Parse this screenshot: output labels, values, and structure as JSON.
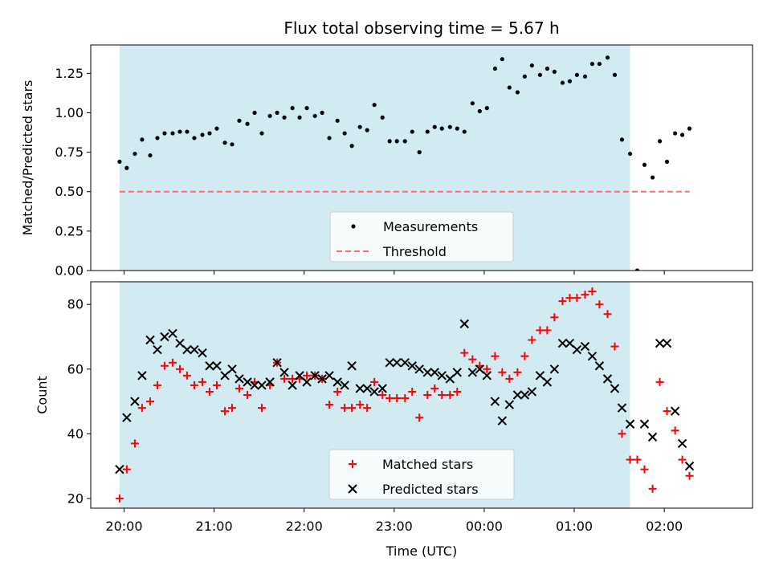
{
  "title": "Flux total observing time = 5.67 h",
  "x_axis": {
    "label": "Time (UTC)",
    "unit": "hours after 20:00 UTC",
    "range": [
      -0.37,
      6.98
    ],
    "ticks": [
      {
        "value": 0,
        "label": "20:00"
      },
      {
        "value": 1,
        "label": "21:00"
      },
      {
        "value": 2,
        "label": "22:00"
      },
      {
        "value": 3,
        "label": "23:00"
      },
      {
        "value": 4,
        "label": "00:00"
      },
      {
        "value": 5,
        "label": "01:00"
      },
      {
        "value": 6,
        "label": "02:00"
      }
    ]
  },
  "shaded_span": {
    "x_start": -0.05,
    "x_end": 5.62,
    "color": "#add8e6"
  },
  "colors": {
    "measurements": "#000000",
    "threshold": "#ff6b6b",
    "matched": "#ff0000",
    "predicted": "#000000"
  },
  "chart_data": [
    {
      "type": "scatter",
      "ylabel": "Matched/Predicted stars",
      "ylim": [
        0,
        1.43
      ],
      "yticks": [
        {
          "value": 0,
          "label": "0.00"
        },
        {
          "value": 0.25,
          "label": "0.25"
        },
        {
          "value": 0.5,
          "label": "0.50"
        },
        {
          "value": 0.75,
          "label": "0.75"
        },
        {
          "value": 1.0,
          "label": "1.00"
        },
        {
          "value": 1.25,
          "label": "1.25"
        }
      ],
      "legend_position": "lower-center",
      "series": [
        {
          "name": "Measurements",
          "marker": "dot",
          "points": [
            [
              -0.05,
              0.69
            ],
            [
              0.03,
              0.65
            ],
            [
              0.12,
              0.74
            ],
            [
              0.2,
              0.83
            ],
            [
              0.29,
              0.73
            ],
            [
              0.37,
              0.84
            ],
            [
              0.45,
              0.87
            ],
            [
              0.54,
              0.87
            ],
            [
              0.62,
              0.88
            ],
            [
              0.7,
              0.88
            ],
            [
              0.78,
              0.84
            ],
            [
              0.87,
              0.86
            ],
            [
              0.95,
              0.87
            ],
            [
              1.03,
              0.9
            ],
            [
              1.12,
              0.81
            ],
            [
              1.2,
              0.8
            ],
            [
              1.28,
              0.95
            ],
            [
              1.37,
              0.93
            ],
            [
              1.45,
              1.0
            ],
            [
              1.53,
              0.87
            ],
            [
              1.62,
              0.98
            ],
            [
              1.7,
              1.0
            ],
            [
              1.78,
              0.97
            ],
            [
              1.87,
              1.03
            ],
            [
              1.95,
              0.97
            ],
            [
              2.03,
              1.03
            ],
            [
              2.12,
              0.98
            ],
            [
              2.2,
              1.0
            ],
            [
              2.28,
              0.84
            ],
            [
              2.37,
              0.95
            ],
            [
              2.45,
              0.87
            ],
            [
              2.53,
              0.79
            ],
            [
              2.62,
              0.91
            ],
            [
              2.7,
              0.89
            ],
            [
              2.78,
              1.05
            ],
            [
              2.87,
              0.97
            ],
            [
              2.95,
              0.82
            ],
            [
              3.03,
              0.82
            ],
            [
              3.12,
              0.82
            ],
            [
              3.2,
              0.88
            ],
            [
              3.28,
              0.75
            ],
            [
              3.37,
              0.88
            ],
            [
              3.45,
              0.91
            ],
            [
              3.53,
              0.9
            ],
            [
              3.62,
              0.91
            ],
            [
              3.7,
              0.9
            ],
            [
              3.78,
              0.88
            ],
            [
              3.87,
              1.06
            ],
            [
              3.95,
              1.01
            ],
            [
              4.03,
              1.03
            ],
            [
              4.12,
              1.28
            ],
            [
              4.2,
              1.34
            ],
            [
              4.28,
              1.16
            ],
            [
              4.37,
              1.13
            ],
            [
              4.45,
              1.23
            ],
            [
              4.53,
              1.3
            ],
            [
              4.62,
              1.24
            ],
            [
              4.7,
              1.28
            ],
            [
              4.78,
              1.26
            ],
            [
              4.87,
              1.19
            ],
            [
              4.95,
              1.2
            ],
            [
              5.03,
              1.24
            ],
            [
              5.12,
              1.23
            ],
            [
              5.2,
              1.31
            ],
            [
              5.28,
              1.31
            ],
            [
              5.37,
              1.35
            ],
            [
              5.45,
              1.24
            ],
            [
              5.53,
              0.83
            ],
            [
              5.62,
              0.74
            ],
            [
              5.7,
              0.0
            ],
            [
              5.78,
              0.67
            ],
            [
              5.87,
              0.59
            ],
            [
              5.95,
              0.82
            ],
            [
              6.03,
              0.69
            ],
            [
              6.12,
              0.87
            ],
            [
              6.2,
              0.86
            ],
            [
              6.28,
              0.9
            ]
          ]
        },
        {
          "name": "Threshold",
          "marker": "dashed-line",
          "points": [
            [
              -0.05,
              0.5
            ],
            [
              6.28,
              0.5
            ]
          ]
        }
      ]
    },
    {
      "type": "scatter",
      "ylabel": "Count",
      "ylim": [
        17,
        87
      ],
      "yticks": [
        {
          "value": 20,
          "label": "20"
        },
        {
          "value": 40,
          "label": "40"
        },
        {
          "value": 60,
          "label": "60"
        },
        {
          "value": 80,
          "label": "80"
        }
      ],
      "legend_position": "lower-center",
      "series": [
        {
          "name": "Matched stars",
          "marker": "plus",
          "points": [
            [
              -0.05,
              20
            ],
            [
              0.03,
              29
            ],
            [
              0.12,
              37
            ],
            [
              0.2,
              48
            ],
            [
              0.29,
              50
            ],
            [
              0.37,
              55
            ],
            [
              0.45,
              61
            ],
            [
              0.54,
              62
            ],
            [
              0.62,
              60
            ],
            [
              0.7,
              58
            ],
            [
              0.78,
              55
            ],
            [
              0.87,
              56
            ],
            [
              0.95,
              53
            ],
            [
              1.03,
              55
            ],
            [
              1.12,
              47
            ],
            [
              1.2,
              48
            ],
            [
              1.28,
              54
            ],
            [
              1.37,
              52
            ],
            [
              1.45,
              56
            ],
            [
              1.53,
              48
            ],
            [
              1.62,
              55
            ],
            [
              1.7,
              62
            ],
            [
              1.78,
              57
            ],
            [
              1.87,
              57
            ],
            [
              1.95,
              57
            ],
            [
              2.03,
              58
            ],
            [
              2.12,
              58
            ],
            [
              2.2,
              57
            ],
            [
              2.28,
              49
            ],
            [
              2.37,
              53
            ],
            [
              2.45,
              48
            ],
            [
              2.53,
              48
            ],
            [
              2.62,
              49
            ],
            [
              2.7,
              48
            ],
            [
              2.78,
              56
            ],
            [
              2.87,
              52
            ],
            [
              2.95,
              51
            ],
            [
              3.03,
              51
            ],
            [
              3.12,
              51
            ],
            [
              3.2,
              53
            ],
            [
              3.28,
              45
            ],
            [
              3.37,
              52
            ],
            [
              3.45,
              54
            ],
            [
              3.53,
              52
            ],
            [
              3.62,
              52
            ],
            [
              3.7,
              53
            ],
            [
              3.78,
              65
            ],
            [
              3.87,
              63
            ],
            [
              3.95,
              61
            ],
            [
              4.03,
              60
            ],
            [
              4.12,
              64
            ],
            [
              4.2,
              59
            ],
            [
              4.28,
              57
            ],
            [
              4.37,
              59
            ],
            [
              4.45,
              64
            ],
            [
              4.53,
              69
            ],
            [
              4.62,
              72
            ],
            [
              4.7,
              72
            ],
            [
              4.78,
              76
            ],
            [
              4.87,
              81
            ],
            [
              4.95,
              82
            ],
            [
              5.03,
              82
            ],
            [
              5.12,
              83
            ],
            [
              5.2,
              84
            ],
            [
              5.28,
              80
            ],
            [
              5.37,
              77
            ],
            [
              5.45,
              67
            ],
            [
              5.53,
              40
            ],
            [
              5.62,
              32
            ],
            [
              5.7,
              32
            ],
            [
              5.78,
              29
            ],
            [
              5.87,
              23
            ],
            [
              5.95,
              56
            ],
            [
              6.03,
              47
            ],
            [
              6.12,
              41
            ],
            [
              6.2,
              32
            ],
            [
              6.28,
              27
            ]
          ]
        },
        {
          "name": "Predicted stars",
          "marker": "cross",
          "points": [
            [
              -0.05,
              29
            ],
            [
              0.03,
              45
            ],
            [
              0.12,
              50
            ],
            [
              0.2,
              58
            ],
            [
              0.29,
              69
            ],
            [
              0.37,
              66
            ],
            [
              0.45,
              70
            ],
            [
              0.54,
              71
            ],
            [
              0.62,
              68
            ],
            [
              0.7,
              66
            ],
            [
              0.78,
              66
            ],
            [
              0.87,
              65
            ],
            [
              0.95,
              61
            ],
            [
              1.03,
              61
            ],
            [
              1.12,
              58
            ],
            [
              1.2,
              60
            ],
            [
              1.28,
              57
            ],
            [
              1.37,
              56
            ],
            [
              1.45,
              55
            ],
            [
              1.53,
              55
            ],
            [
              1.62,
              56
            ],
            [
              1.7,
              62
            ],
            [
              1.78,
              59
            ],
            [
              1.87,
              55
            ],
            [
              1.95,
              58
            ],
            [
              2.03,
              56
            ],
            [
              2.12,
              58
            ],
            [
              2.2,
              57
            ],
            [
              2.28,
              58
            ],
            [
              2.37,
              56
            ],
            [
              2.45,
              55
            ],
            [
              2.53,
              61
            ],
            [
              2.62,
              54
            ],
            [
              2.7,
              54
            ],
            [
              2.78,
              53
            ],
            [
              2.87,
              54
            ],
            [
              2.95,
              62
            ],
            [
              3.03,
              62
            ],
            [
              3.12,
              62
            ],
            [
              3.2,
              61
            ],
            [
              3.28,
              60
            ],
            [
              3.37,
              59
            ],
            [
              3.45,
              59
            ],
            [
              3.53,
              58
            ],
            [
              3.62,
              57
            ],
            [
              3.7,
              59
            ],
            [
              3.78,
              74
            ],
            [
              3.87,
              59
            ],
            [
              3.95,
              60
            ],
            [
              4.03,
              58
            ],
            [
              4.12,
              50
            ],
            [
              4.2,
              44
            ],
            [
              4.28,
              49
            ],
            [
              4.37,
              52
            ],
            [
              4.45,
              52
            ],
            [
              4.53,
              53
            ],
            [
              4.62,
              58
            ],
            [
              4.7,
              56
            ],
            [
              4.78,
              60
            ],
            [
              4.87,
              68
            ],
            [
              4.95,
              68
            ],
            [
              5.03,
              66
            ],
            [
              5.12,
              67
            ],
            [
              5.2,
              64
            ],
            [
              5.28,
              61
            ],
            [
              5.37,
              57
            ],
            [
              5.45,
              54
            ],
            [
              5.53,
              48
            ],
            [
              5.62,
              43
            ],
            [
              5.78,
              43
            ],
            [
              5.87,
              39
            ],
            [
              5.95,
              68
            ],
            [
              6.03,
              68
            ],
            [
              6.12,
              47
            ],
            [
              6.2,
              37
            ],
            [
              6.28,
              30
            ]
          ]
        }
      ]
    }
  ]
}
